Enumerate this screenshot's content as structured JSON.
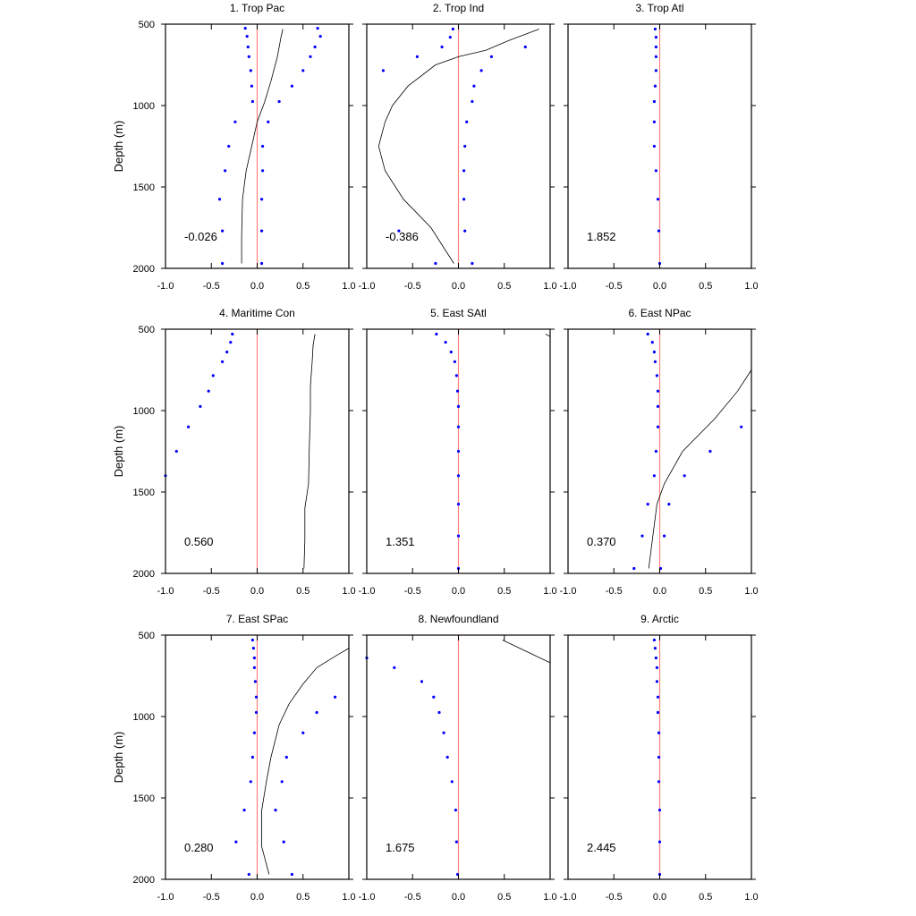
{
  "chart_data": {
    "type": "scatter",
    "ylabel": "Depth (m)",
    "xlim": [
      -1.0,
      1.0
    ],
    "ylim": [
      500,
      2000
    ],
    "y_inverted": true,
    "xticks": [
      -1.0,
      -0.5,
      0.0,
      0.5,
      1.0
    ],
    "xtick_labels": [
      "-1.0",
      "-0.5",
      "0.0",
      "0.5",
      "1.0"
    ],
    "yticks": [
      500,
      1000,
      1500,
      2000
    ],
    "ytick_labels": [
      "500",
      "1000",
      "1500",
      "2000"
    ],
    "colors": {
      "points": "#0000ff",
      "zero_line": "#ff8080",
      "curve": "#000000"
    },
    "panels": [
      {
        "title": "1. Trop Pac",
        "value_label": "-0.026",
        "points": [
          [
            -0.13,
            525
          ],
          [
            -0.11,
            575
          ],
          [
            -0.1,
            640
          ],
          [
            -0.09,
            700
          ],
          [
            -0.07,
            785
          ],
          [
            -0.06,
            880
          ],
          [
            -0.05,
            975
          ],
          [
            0.12,
            1100
          ],
          [
            0.06,
            1250
          ],
          [
            0.06,
            1400
          ],
          [
            0.05,
            1575
          ],
          [
            0.05,
            1770
          ],
          [
            0.05,
            1970
          ],
          [
            0.66,
            525
          ],
          [
            0.69,
            575
          ],
          [
            0.63,
            640
          ],
          [
            0.58,
            700
          ],
          [
            0.5,
            785
          ],
          [
            0.38,
            880
          ],
          [
            0.24,
            975
          ],
          [
            -0.24,
            1100
          ],
          [
            -0.31,
            1250
          ],
          [
            -0.35,
            1400
          ],
          [
            -0.41,
            1575
          ],
          [
            -0.38,
            1770
          ],
          [
            -0.38,
            1970
          ]
        ],
        "curve": [
          [
            0.28,
            530
          ],
          [
            0.26,
            580
          ],
          [
            0.22,
            700
          ],
          [
            0.15,
            850
          ],
          [
            0.08,
            980
          ],
          [
            0.0,
            1100
          ],
          [
            -0.06,
            1250
          ],
          [
            -0.12,
            1400
          ],
          [
            -0.16,
            1575
          ],
          [
            -0.17,
            1800
          ],
          [
            -0.17,
            1970
          ]
        ]
      },
      {
        "title": "2. Trop Ind",
        "value_label": "-0.386",
        "points": [
          [
            -0.06,
            530
          ],
          [
            -0.09,
            580
          ],
          [
            -0.18,
            640
          ],
          [
            -0.45,
            700
          ],
          [
            -0.82,
            785
          ],
          [
            -0.65,
            1770
          ],
          [
            -0.25,
            1970
          ],
          [
            0.73,
            640
          ],
          [
            0.36,
            700
          ],
          [
            0.25,
            785
          ],
          [
            0.17,
            880
          ],
          [
            0.15,
            975
          ],
          [
            0.09,
            1100
          ],
          [
            0.07,
            1250
          ],
          [
            0.06,
            1400
          ],
          [
            0.06,
            1575
          ],
          [
            0.07,
            1770
          ],
          [
            0.15,
            1970
          ]
        ],
        "curve": [
          [
            0.88,
            530
          ],
          [
            0.55,
            600
          ],
          [
            0.3,
            660
          ],
          [
            0.0,
            700
          ],
          [
            -0.25,
            750
          ],
          [
            -0.55,
            880
          ],
          [
            -0.72,
            1000
          ],
          [
            -0.8,
            1100
          ],
          [
            -0.87,
            1250
          ],
          [
            -0.8,
            1400
          ],
          [
            -0.6,
            1575
          ],
          [
            -0.3,
            1750
          ],
          [
            -0.05,
            1970
          ]
        ]
      },
      {
        "title": "3. Trop Atl",
        "value_label": "1.852",
        "points": [
          [
            -0.05,
            530
          ],
          [
            -0.04,
            580
          ],
          [
            -0.04,
            640
          ],
          [
            -0.04,
            700
          ],
          [
            -0.04,
            785
          ],
          [
            -0.05,
            880
          ],
          [
            -0.06,
            975
          ],
          [
            -0.06,
            1100
          ],
          [
            -0.06,
            1250
          ],
          [
            -0.04,
            1400
          ],
          [
            -0.02,
            1575
          ],
          [
            -0.01,
            1770
          ],
          [
            0.0,
            1970
          ]
        ],
        "curve": []
      },
      {
        "title": "4. Maritime Con",
        "value_label": "0.560",
        "points": [
          [
            -0.27,
            530
          ],
          [
            -0.29,
            580
          ],
          [
            -0.33,
            640
          ],
          [
            -0.38,
            700
          ],
          [
            -0.48,
            785
          ],
          [
            -0.53,
            880
          ],
          [
            -0.62,
            975
          ],
          [
            -0.75,
            1100
          ],
          [
            -0.88,
            1250
          ],
          [
            -1.0,
            1400
          ]
        ],
        "curve": [
          [
            0.63,
            530
          ],
          [
            0.61,
            600
          ],
          [
            0.6,
            700
          ],
          [
            0.58,
            850
          ],
          [
            0.58,
            1000
          ],
          [
            0.57,
            1200
          ],
          [
            0.56,
            1450
          ],
          [
            0.52,
            1600
          ],
          [
            0.52,
            1800
          ],
          [
            0.51,
            1970
          ]
        ]
      },
      {
        "title": "5. East SAtl",
        "value_label": "1.351",
        "points": [
          [
            -0.24,
            530
          ],
          [
            -0.14,
            580
          ],
          [
            -0.08,
            640
          ],
          [
            -0.04,
            700
          ],
          [
            -0.02,
            785
          ],
          [
            -0.01,
            880
          ],
          [
            0.0,
            975
          ],
          [
            0.0,
            1100
          ],
          [
            0.0,
            1250
          ],
          [
            0.0,
            1400
          ],
          [
            0.0,
            1575
          ],
          [
            0.0,
            1770
          ],
          [
            0.0,
            1970
          ]
        ],
        "curve": [
          [
            0.95,
            530
          ],
          [
            1.0,
            545
          ]
        ]
      },
      {
        "title": "6. East NPac",
        "value_label": "0.370",
        "points": [
          [
            -0.13,
            530
          ],
          [
            -0.08,
            580
          ],
          [
            -0.06,
            640
          ],
          [
            -0.05,
            700
          ],
          [
            -0.03,
            785
          ],
          [
            -0.02,
            880
          ],
          [
            -0.02,
            975
          ],
          [
            -0.02,
            1100
          ],
          [
            -0.04,
            1250
          ],
          [
            -0.06,
            1400
          ],
          [
            -0.13,
            1575
          ],
          [
            -0.19,
            1770
          ],
          [
            -0.28,
            1970
          ],
          [
            0.89,
            1100
          ],
          [
            0.55,
            1250
          ],
          [
            0.27,
            1400
          ],
          [
            0.1,
            1575
          ],
          [
            0.05,
            1770
          ],
          [
            0.01,
            1970
          ]
        ],
        "curve": [
          [
            1.0,
            750
          ],
          [
            0.85,
            880
          ],
          [
            0.6,
            1050
          ],
          [
            0.25,
            1250
          ],
          [
            0.05,
            1450
          ],
          [
            -0.03,
            1575
          ],
          [
            -0.07,
            1750
          ],
          [
            -0.12,
            1970
          ]
        ]
      },
      {
        "title": "7. East SPac",
        "value_label": "0.280",
        "points": [
          [
            -0.05,
            530
          ],
          [
            -0.04,
            580
          ],
          [
            -0.03,
            640
          ],
          [
            -0.03,
            700
          ],
          [
            -0.02,
            785
          ],
          [
            -0.01,
            880
          ],
          [
            -0.01,
            975
          ],
          [
            -0.03,
            1100
          ],
          [
            -0.05,
            1250
          ],
          [
            -0.07,
            1400
          ],
          [
            -0.14,
            1575
          ],
          [
            -0.23,
            1770
          ],
          [
            -0.09,
            1970
          ],
          [
            0.85,
            880
          ],
          [
            0.65,
            975
          ],
          [
            0.5,
            1100
          ],
          [
            0.32,
            1250
          ],
          [
            0.27,
            1400
          ],
          [
            0.2,
            1575
          ],
          [
            0.29,
            1770
          ],
          [
            0.38,
            1970
          ]
        ],
        "curve": [
          [
            1.0,
            580
          ],
          [
            0.85,
            630
          ],
          [
            0.65,
            700
          ],
          [
            0.5,
            800
          ],
          [
            0.35,
            920
          ],
          [
            0.24,
            1050
          ],
          [
            0.15,
            1250
          ],
          [
            0.1,
            1400
          ],
          [
            0.05,
            1575
          ],
          [
            0.05,
            1800
          ],
          [
            0.13,
            1970
          ]
        ]
      },
      {
        "title": "8. Newfoundland",
        "value_label": "1.675",
        "points": [
          [
            -1.0,
            640
          ],
          [
            -0.7,
            700
          ],
          [
            -0.4,
            785
          ],
          [
            -0.27,
            880
          ],
          [
            -0.21,
            975
          ],
          [
            -0.16,
            1100
          ],
          [
            -0.12,
            1250
          ],
          [
            -0.07,
            1400
          ],
          [
            -0.03,
            1575
          ],
          [
            -0.02,
            1770
          ],
          [
            -0.01,
            1970
          ]
        ],
        "curve": [
          [
            0.48,
            530
          ],
          [
            1.0,
            670
          ]
        ]
      },
      {
        "title": "9. Arctic",
        "value_label": "2.445",
        "points": [
          [
            -0.06,
            530
          ],
          [
            -0.05,
            580
          ],
          [
            -0.04,
            640
          ],
          [
            -0.03,
            700
          ],
          [
            -0.03,
            785
          ],
          [
            -0.02,
            880
          ],
          [
            -0.02,
            975
          ],
          [
            -0.01,
            1100
          ],
          [
            -0.01,
            1250
          ],
          [
            -0.01,
            1400
          ],
          [
            0.0,
            1575
          ],
          [
            0.0,
            1770
          ],
          [
            0.0,
            1970
          ]
        ],
        "curve": []
      }
    ]
  }
}
